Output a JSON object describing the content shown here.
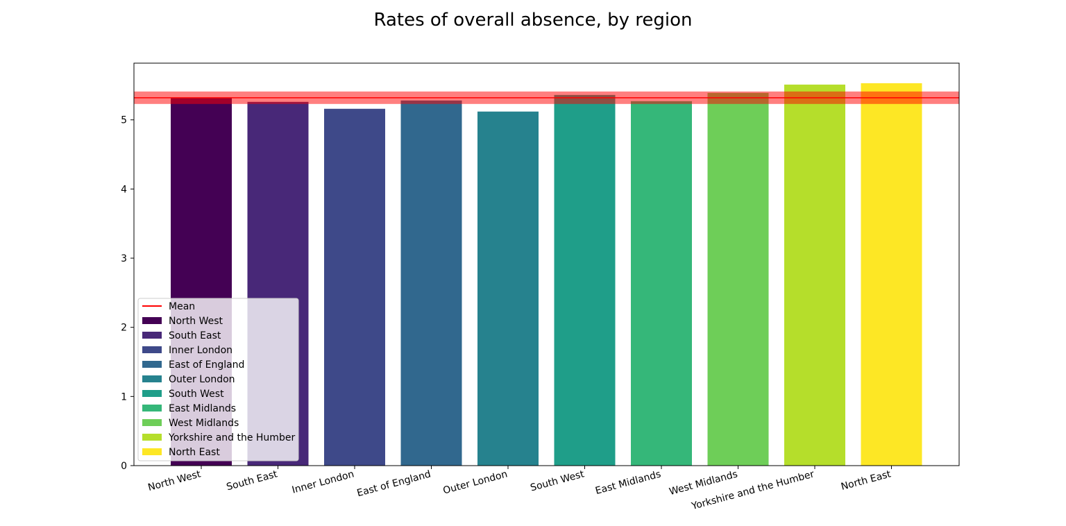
{
  "chart_data": {
    "type": "bar",
    "title": "Rates of overall absence, by region",
    "xlabel": "",
    "ylabel": "",
    "categories": [
      "North West",
      "South East",
      "Inner London",
      "East of England",
      "Outer London",
      "South West",
      "East Midlands",
      "West Midlands",
      "Yorkshire and the Humber",
      "North East"
    ],
    "values": [
      5.32,
      5.26,
      5.16,
      5.28,
      5.12,
      5.36,
      5.27,
      5.39,
      5.51,
      5.53
    ],
    "colors": [
      "#440154",
      "#482878",
      "#3e4989",
      "#31688e",
      "#26828e",
      "#1f9e89",
      "#35b779",
      "#6ece58",
      "#b5de2b",
      "#fde725"
    ],
    "mean": 5.32,
    "mean_band": [
      5.23,
      5.41
    ],
    "mean_color": "#ff0000",
    "ylim": [
      0,
      5.82
    ],
    "yticks": [
      0,
      1,
      2,
      3,
      4,
      5
    ],
    "grid": false,
    "legend": {
      "placement": "lower-left",
      "entries": [
        "Mean",
        "North West",
        "South East",
        "Inner London",
        "East of England",
        "Outer London",
        "South West",
        "East Midlands",
        "West Midlands",
        "Yorkshire and the Humber",
        "North East"
      ]
    }
  }
}
